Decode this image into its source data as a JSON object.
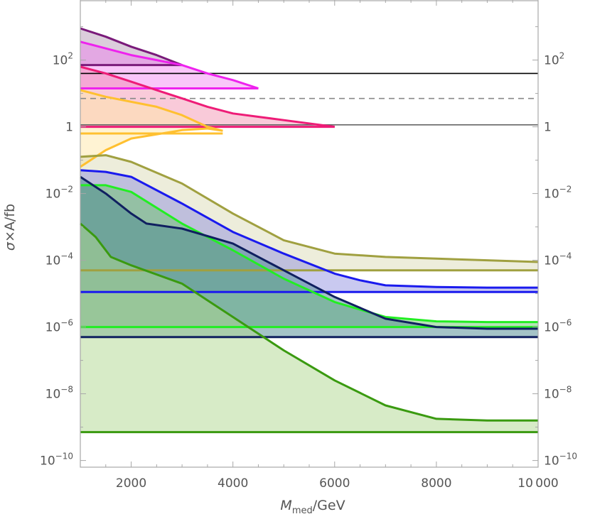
{
  "chart_data": {
    "type": "area",
    "title": "",
    "xlabel": {
      "main": "M",
      "sub": "med",
      "unit": "/GeV"
    },
    "ylabel": {
      "sigma": "σ",
      "rest": "×A/fb"
    },
    "xlim": [
      1000,
      10000
    ],
    "ylim_log10": [
      -10.2,
      3.8
    ],
    "x_ticks": [
      {
        "value": 2000,
        "label": "2000"
      },
      {
        "value": 4000,
        "label": "4000"
      },
      {
        "value": 6000,
        "label": "6000"
      },
      {
        "value": 8000,
        "label": "8000"
      },
      {
        "value": 10000,
        "label": "10 000"
      }
    ],
    "y_ticks": [
      {
        "log": 2,
        "base": "10",
        "exp": "2"
      },
      {
        "log": 0,
        "base": "1",
        "exp": ""
      },
      {
        "log": -2,
        "base": "10",
        "exp": "−2"
      },
      {
        "log": -4,
        "base": "10",
        "exp": "−4"
      },
      {
        "log": -6,
        "base": "10",
        "exp": "−6"
      },
      {
        "log": -8,
        "base": "10",
        "exp": "−8"
      },
      {
        "log": -10,
        "base": "10",
        "exp": "−10"
      }
    ],
    "reference_lines": [
      {
        "name": "ref-solid-black",
        "log": 1.6,
        "color": "#000000",
        "dashed": false
      },
      {
        "name": "ref-dashed-gray",
        "log": 0.85,
        "color": "#888888",
        "dashed": true
      },
      {
        "name": "ref-solid-gray",
        "log": 0.06,
        "color": "#666666",
        "dashed": false
      }
    ],
    "series": [
      {
        "name": "purple",
        "color": "#7a1a7a",
        "fill": "#b090b0",
        "fill_opacity": 0.45,
        "baseline_log": 1.85,
        "x": [
          1000,
          1500,
          2000,
          2500,
          3000
        ],
        "log_y": [
          2.95,
          2.7,
          2.4,
          2.15,
          1.85
        ]
      },
      {
        "name": "magenta",
        "color": "#ee22ee",
        "fill": "#f070f0",
        "fill_opacity": 0.4,
        "baseline_log": 1.15,
        "x": [
          1000,
          1500,
          2000,
          2500,
          3000,
          3500,
          4000,
          4500
        ],
        "log_y": [
          2.55,
          2.35,
          2.15,
          2.0,
          1.85,
          1.6,
          1.4,
          1.15
        ]
      },
      {
        "name": "pink-red",
        "color": "#ee1c77",
        "fill": "#f07ba0",
        "fill_opacity": 0.4,
        "baseline_log": 0.0,
        "x": [
          1000,
          1500,
          2000,
          2500,
          3000,
          3500,
          4000,
          5000,
          6000
        ],
        "log_y": [
          1.8,
          1.6,
          1.35,
          1.1,
          0.85,
          0.6,
          0.4,
          0.2,
          0.0
        ]
      },
      {
        "name": "orange",
        "color": "#ffc030",
        "fill": "#ffe8a8",
        "fill_opacity": 0.5,
        "baseline_log": -0.2,
        "x": [
          1000,
          1500,
          2000,
          2500,
          3000,
          3500,
          3800
        ],
        "log_y": [
          1.1,
          0.9,
          0.75,
          0.6,
          0.35,
          0.0,
          -0.12
        ],
        "lower_x": [
          1000,
          1500,
          2000,
          3000,
          3500,
          3800
        ],
        "lower_log_y": [
          -1.2,
          -0.7,
          -0.35,
          -0.1,
          -0.05,
          -0.12
        ]
      },
      {
        "name": "olive",
        "color": "#a0a040",
        "fill": "#d8d8b0",
        "fill_opacity": 0.45,
        "baseline_log": -4.3,
        "x": [
          1000,
          1500,
          2000,
          3000,
          4000,
          5000,
          6000,
          7000,
          8000,
          9000,
          10000
        ],
        "log_y": [
          -0.9,
          -0.85,
          -1.05,
          -1.7,
          -2.6,
          -3.4,
          -3.8,
          -3.9,
          -3.95,
          -4.0,
          -4.05
        ]
      },
      {
        "name": "blue",
        "color": "#1a1aee",
        "fill": "#8888dd",
        "fill_opacity": 0.45,
        "baseline_log": -4.95,
        "x": [
          1000,
          1500,
          2000,
          3000,
          4000,
          5000,
          6000,
          6500,
          7000,
          8000,
          9000,
          10000
        ],
        "log_y": [
          -1.3,
          -1.35,
          -1.5,
          -2.3,
          -3.15,
          -3.8,
          -4.4,
          -4.6,
          -4.75,
          -4.8,
          -4.82,
          -4.82
        ]
      },
      {
        "name": "green",
        "color": "#22ee22",
        "fill": "#60c060",
        "fill_opacity": 0.45,
        "baseline_log": -6.0,
        "x": [
          1000,
          1500,
          2000,
          3000,
          4000,
          5000,
          6000,
          7000,
          8000,
          9000,
          10000
        ],
        "log_y": [
          -1.75,
          -1.75,
          -1.95,
          -2.9,
          -3.7,
          -4.55,
          -5.25,
          -5.7,
          -5.83,
          -5.85,
          -5.85
        ]
      },
      {
        "name": "navy",
        "color": "#102060",
        "fill": "#4a8890",
        "fill_opacity": 0.5,
        "baseline_log": -6.3,
        "x": [
          1000,
          1500,
          2000,
          2300,
          3000,
          4000,
          5000,
          6000,
          7000,
          8000,
          9000,
          10000
        ],
        "log_y": [
          -1.5,
          -2.0,
          -2.6,
          -2.9,
          -3.05,
          -3.5,
          -4.3,
          -5.1,
          -5.75,
          -6.0,
          -6.05,
          -6.05
        ]
      },
      {
        "name": "dark-green",
        "color": "#3a9a10",
        "fill": "#b0d890",
        "fill_opacity": 0.5,
        "baseline_log": -9.15,
        "x": [
          1000,
          1300,
          1600,
          2000,
          3000,
          4000,
          5000,
          6000,
          7000,
          8000,
          9000,
          10000
        ],
        "log_y": [
          -2.9,
          -3.3,
          -3.9,
          -4.15,
          -4.7,
          -5.7,
          -6.7,
          -7.6,
          -8.35,
          -8.75,
          -8.8,
          -8.8
        ]
      }
    ]
  }
}
